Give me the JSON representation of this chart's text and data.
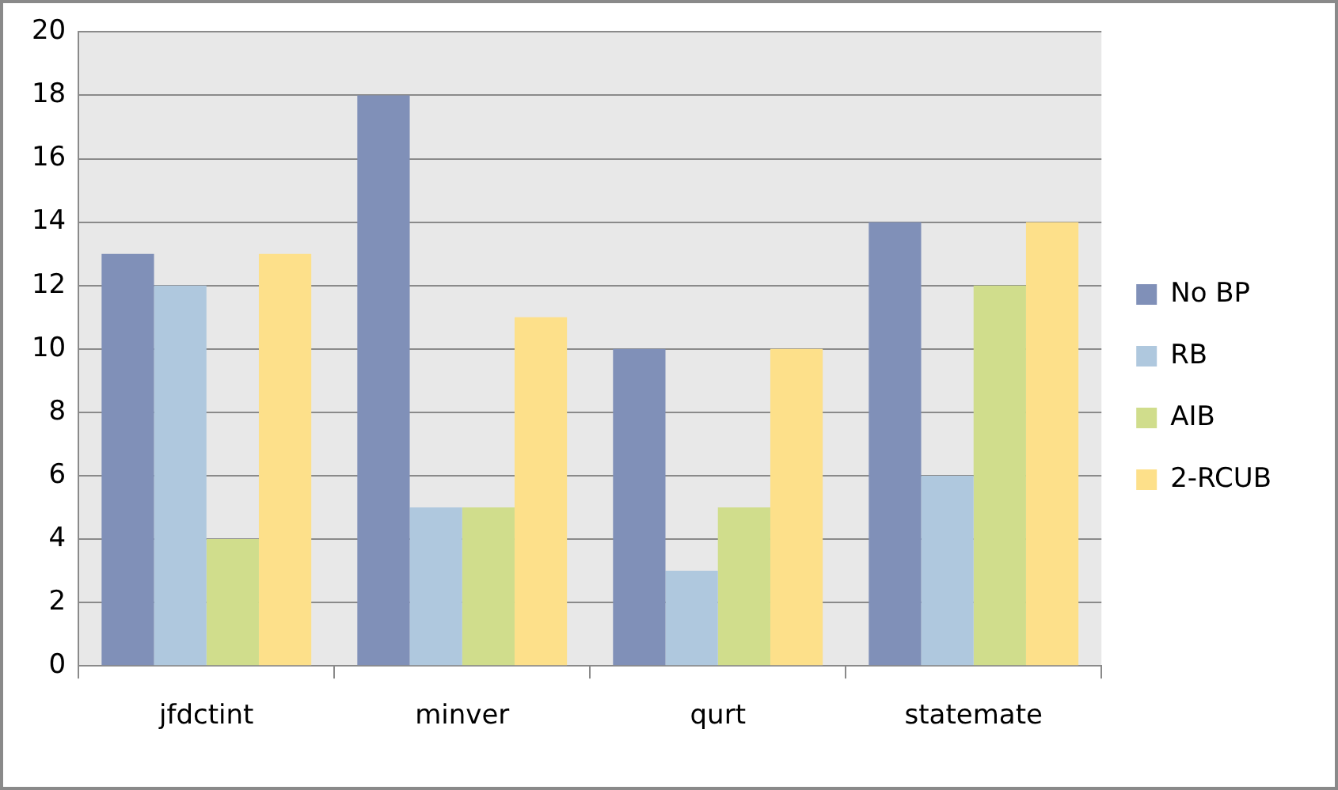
{
  "chart_data": {
    "type": "bar",
    "categories": [
      "jfdctint",
      "minver",
      "qurt",
      "statemate"
    ],
    "series": [
      {
        "name": "No BP",
        "color": "#8090b8",
        "values": [
          13,
          18,
          10,
          14
        ]
      },
      {
        "name": "RB",
        "color": "#afc8de",
        "values": [
          12,
          5,
          3,
          6
        ]
      },
      {
        "name": "AIB",
        "color": "#d0dd8c",
        "values": [
          4,
          5,
          5,
          12
        ]
      },
      {
        "name": "2-RCUB",
        "color": "#fde08a",
        "values": [
          13,
          11,
          10,
          14
        ]
      }
    ],
    "ylim": [
      0,
      20
    ],
    "yticks": [
      0,
      2,
      4,
      6,
      8,
      10,
      12,
      14,
      16,
      18,
      20
    ],
    "grid": "y",
    "legend": "right"
  }
}
